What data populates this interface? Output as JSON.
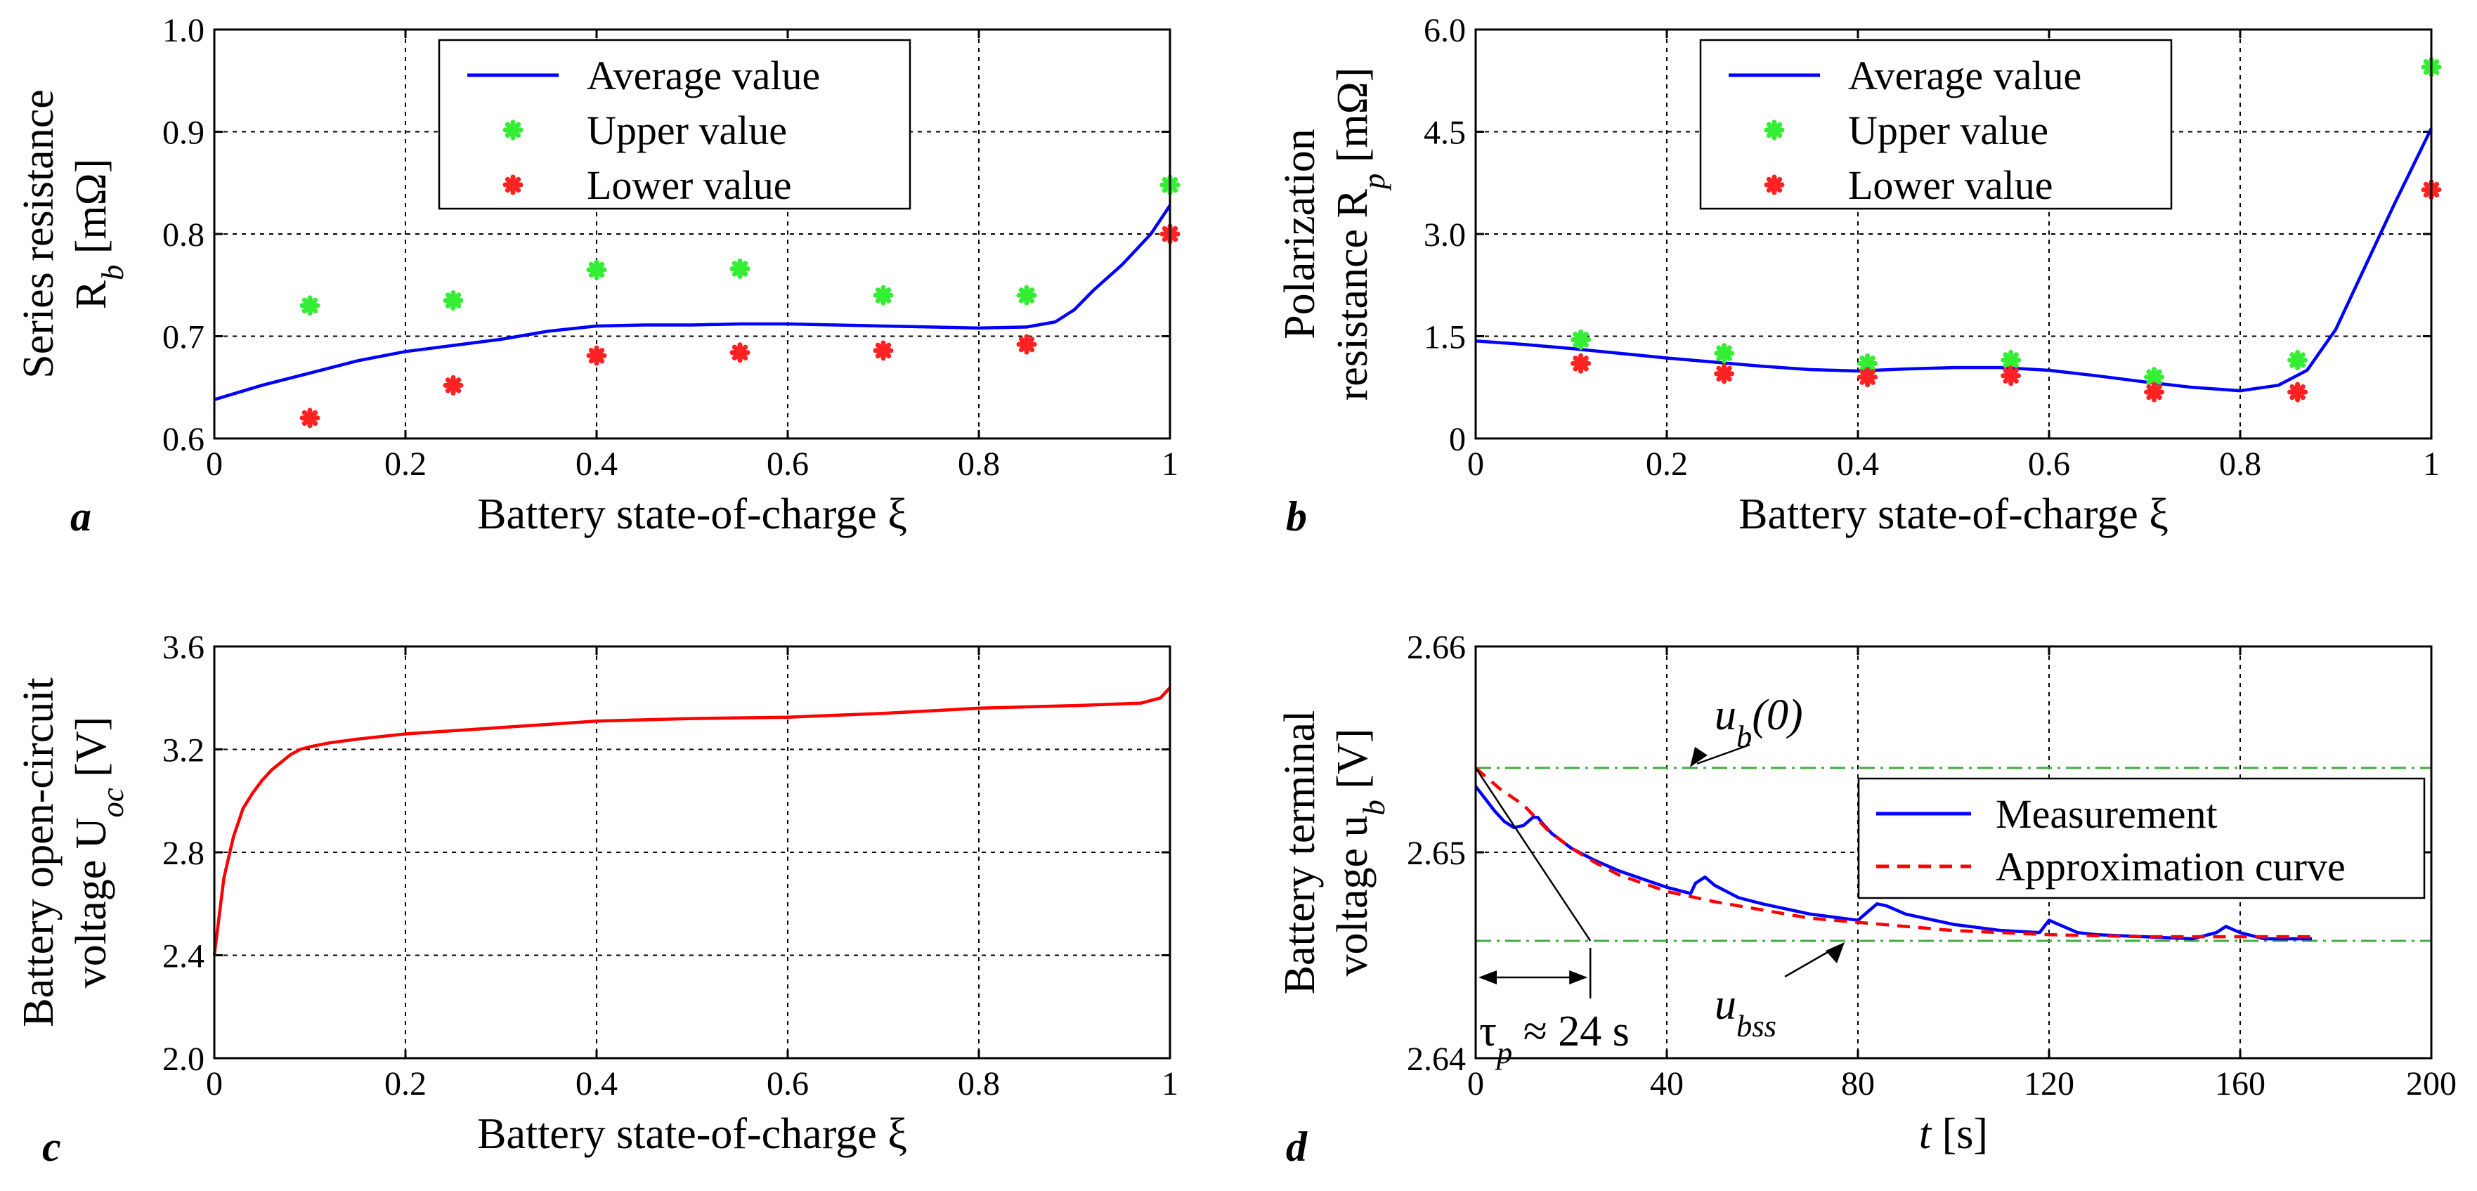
{
  "chart_data": [
    {
      "id": "a",
      "type": "line+scatter",
      "panel_label": "a",
      "ylabel_lines": [
        "Series resistance",
        "R_b [mΩ]"
      ],
      "xlabel": "Battery state-of-charge ξ",
      "xlim": [
        0,
        1
      ],
      "ylim": [
        0.6,
        1.0
      ],
      "xticks": [
        0,
        0.2,
        0.4,
        0.6,
        0.8,
        1
      ],
      "xtick_labels": [
        "0",
        "0.2",
        "0.4",
        "0.6",
        "0.8",
        "1"
      ],
      "yticks": [
        0.6,
        0.7,
        0.8,
        0.9,
        1.0
      ],
      "ytick_labels": [
        "0.6",
        "0.7",
        "0.8",
        "0.9",
        "1.0"
      ],
      "grid": true,
      "legend_position": "top-center",
      "series": [
        {
          "name": "Average value",
          "kind": "line",
          "color": "#0000ff",
          "x": [
            0,
            0.05,
            0.1,
            0.15,
            0.2,
            0.25,
            0.3,
            0.35,
            0.4,
            0.45,
            0.5,
            0.55,
            0.6,
            0.65,
            0.7,
            0.75,
            0.8,
            0.85,
            0.88,
            0.9,
            0.92,
            0.95,
            0.98,
            1.0
          ],
          "y": [
            0.638,
            0.652,
            0.664,
            0.676,
            0.685,
            0.691,
            0.697,
            0.705,
            0.71,
            0.711,
            0.711,
            0.712,
            0.712,
            0.711,
            0.71,
            0.709,
            0.708,
            0.709,
            0.714,
            0.726,
            0.745,
            0.77,
            0.8,
            0.828
          ]
        },
        {
          "name": "Upper value",
          "kind": "marker",
          "color": "#33ee33",
          "x": [
            0.1,
            0.25,
            0.4,
            0.55,
            0.7,
            0.85,
            1.0
          ],
          "y": [
            0.73,
            0.735,
            0.765,
            0.766,
            0.74,
            0.74,
            0.848
          ]
        },
        {
          "name": "Lower value",
          "kind": "marker",
          "color": "#ff2222",
          "x": [
            0.1,
            0.25,
            0.4,
            0.55,
            0.7,
            0.85,
            1.0
          ],
          "y": [
            0.62,
            0.652,
            0.681,
            0.684,
            0.686,
            0.692,
            0.8
          ]
        }
      ]
    },
    {
      "id": "b",
      "type": "line+scatter",
      "panel_label": "b",
      "ylabel_lines": [
        "Polarization",
        "resistance R_p [mΩ]"
      ],
      "xlabel": "Battery state-of-charge ξ",
      "xlim": [
        0,
        1
      ],
      "ylim": [
        0,
        6.0
      ],
      "xticks": [
        0,
        0.2,
        0.4,
        0.6,
        0.8,
        1
      ],
      "xtick_labels": [
        "0",
        "0.2",
        "0.4",
        "0.6",
        "0.8",
        "1"
      ],
      "yticks": [
        0,
        1.5,
        3.0,
        4.5,
        6.0
      ],
      "ytick_labels": [
        "0",
        "1.5",
        "3.0",
        "4.5",
        "6.0"
      ],
      "grid": true,
      "legend_position": "top-center",
      "series": [
        {
          "name": "Average value",
          "kind": "line",
          "color": "#0000ff",
          "x": [
            0,
            0.05,
            0.1,
            0.15,
            0.2,
            0.25,
            0.3,
            0.35,
            0.4,
            0.45,
            0.5,
            0.55,
            0.6,
            0.65,
            0.7,
            0.75,
            0.8,
            0.84,
            0.87,
            0.9,
            0.93,
            0.96,
            1.0
          ],
          "y": [
            1.43,
            1.38,
            1.32,
            1.25,
            1.18,
            1.12,
            1.06,
            1.01,
            0.99,
            1.02,
            1.04,
            1.04,
            1.0,
            0.92,
            0.83,
            0.75,
            0.7,
            0.78,
            1.0,
            1.6,
            2.5,
            3.4,
            4.55
          ]
        },
        {
          "name": "Upper value",
          "kind": "marker",
          "color": "#33ee33",
          "x": [
            0.11,
            0.26,
            0.41,
            0.56,
            0.71,
            0.86,
            1.0
          ],
          "y": [
            1.45,
            1.25,
            1.1,
            1.15,
            0.9,
            1.15,
            5.45
          ]
        },
        {
          "name": "Lower value",
          "kind": "marker",
          "color": "#ff2222",
          "x": [
            0.11,
            0.26,
            0.41,
            0.56,
            0.71,
            0.86,
            1.0
          ],
          "y": [
            1.1,
            0.95,
            0.9,
            0.92,
            0.68,
            0.68,
            3.65
          ]
        }
      ]
    },
    {
      "id": "c",
      "type": "line",
      "panel_label": "c",
      "ylabel_lines": [
        "Battery open-circuit",
        "voltage U_oc [V]"
      ],
      "xlabel": "Battery state-of-charge ξ",
      "xlim": [
        0,
        1
      ],
      "ylim": [
        2.0,
        3.6
      ],
      "xticks": [
        0,
        0.2,
        0.4,
        0.6,
        0.8,
        1
      ],
      "xtick_labels": [
        "0",
        "0.2",
        "0.4",
        "0.6",
        "0.8",
        "1"
      ],
      "yticks": [
        2.0,
        2.4,
        2.8,
        3.2,
        3.6
      ],
      "ytick_labels": [
        "2.0",
        "2.4",
        "2.8",
        "3.2",
        "3.6"
      ],
      "grid": true,
      "series": [
        {
          "name": "U_oc",
          "kind": "line",
          "color": "#ff0000",
          "x": [
            0,
            0.005,
            0.01,
            0.02,
            0.03,
            0.04,
            0.05,
            0.06,
            0.07,
            0.08,
            0.09,
            0.1,
            0.12,
            0.15,
            0.2,
            0.3,
            0.4,
            0.5,
            0.6,
            0.7,
            0.75,
            0.8,
            0.9,
            0.97,
            0.99,
            1.0
          ],
          "y": [
            2.4,
            2.55,
            2.7,
            2.86,
            2.97,
            3.03,
            3.08,
            3.12,
            3.15,
            3.18,
            3.2,
            3.21,
            3.225,
            3.24,
            3.26,
            3.285,
            3.31,
            3.32,
            3.325,
            3.34,
            3.35,
            3.36,
            3.37,
            3.38,
            3.4,
            3.44
          ]
        }
      ]
    },
    {
      "id": "d",
      "type": "line",
      "panel_label": "d",
      "ylabel_lines": [
        "Battery terminal",
        "voltage u_b [V]"
      ],
      "xlabel": "t [s]",
      "xlim": [
        0,
        200
      ],
      "ylim": [
        2.64,
        2.66
      ],
      "xticks": [
        0,
        40,
        80,
        120,
        160,
        200
      ],
      "xtick_labels": [
        "0",
        "40",
        "80",
        "120",
        "160",
        "200"
      ],
      "yticks": [
        2.64,
        2.65,
        2.66
      ],
      "ytick_labels": [
        "2.64",
        "2.65",
        "2.66"
      ],
      "grid": true,
      "legend_position": "right-center",
      "reference_lines": {
        "ub0": 2.6541,
        "ubss": 2.6457
      },
      "annotations": {
        "ub0_label": "u_b(0)",
        "ubss_label": "u_bss",
        "tau_label": "τ_p ≈ 24 s",
        "tau_seconds": 24
      },
      "series": [
        {
          "name": "Measurement",
          "kind": "line",
          "color": "#0000ff",
          "x": [
            0,
            2,
            4,
            6,
            8,
            10,
            12,
            13,
            14,
            16,
            20,
            25,
            30,
            35,
            40,
            45,
            46,
            48,
            50,
            55,
            60,
            70,
            80,
            82,
            84,
            86,
            90,
            100,
            110,
            118,
            120,
            122,
            126,
            130,
            140,
            150,
            155,
            157,
            160,
            165,
            170,
            175
          ],
          "y": [
            2.6532,
            2.6526,
            2.652,
            2.6515,
            2.6512,
            2.6513,
            2.6517,
            2.6517,
            2.6514,
            2.6509,
            2.6502,
            2.6496,
            2.6491,
            2.6487,
            2.6483,
            2.648,
            2.6485,
            2.6488,
            2.6484,
            2.6478,
            2.6475,
            2.647,
            2.6467,
            2.6471,
            2.6475,
            2.6474,
            2.647,
            2.6465,
            2.6462,
            2.6461,
            2.6467,
            2.6465,
            2.6461,
            2.646,
            2.6459,
            2.6458,
            2.6461,
            2.6464,
            2.6461,
            2.6458,
            2.6458,
            2.6458
          ]
        },
        {
          "name": "Approximation curve",
          "kind": "line",
          "color": "#ff0000",
          "dashed": true,
          "x": [
            0,
            5,
            10,
            15,
            20,
            25,
            30,
            40,
            50,
            60,
            70,
            80,
            90,
            100,
            120,
            140,
            160,
            175
          ],
          "y": [
            2.6541,
            2.6531,
            2.6523,
            2.6511,
            2.6502,
            2.6495,
            2.6489,
            2.6481,
            2.6476,
            2.6472,
            2.6468,
            2.6466,
            2.6464,
            2.6462,
            2.646,
            2.6459,
            2.6459,
            2.6459
          ]
        }
      ]
    }
  ]
}
